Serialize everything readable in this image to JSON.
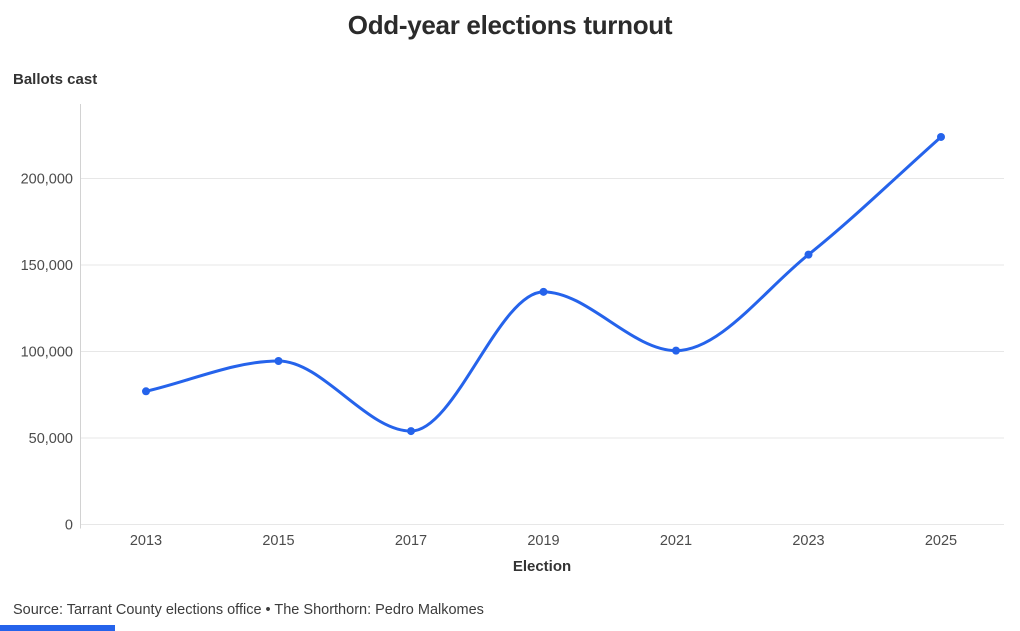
{
  "header": {
    "title": "Odd-year elections turnout"
  },
  "axes": {
    "y_title": "Ballots cast",
    "x_title": "Election"
  },
  "footer": {
    "source": "Source: Tarrant County elections office • The Shorthorn: Pedro Malkomes"
  },
  "colors": {
    "line": "#2563eb",
    "marker": "#2563eb",
    "title_text": "#2b2b2b",
    "axis_label_text": "#333333",
    "tick_text": "#4b4b4b",
    "grid": "#e7e7e7",
    "axis_line": "#d2d2d2",
    "source_text": "#3c3c3c",
    "brand_bar": "#2563eb",
    "background": "#ffffff"
  },
  "chart_data": {
    "type": "line",
    "title": "Odd-year elections turnout",
    "xlabel": "Election",
    "ylabel": "Ballots cast",
    "categories": [
      "2013",
      "2015",
      "2017",
      "2019",
      "2021",
      "2023",
      "2025"
    ],
    "series": [
      {
        "name": "Ballots cast",
        "values": [
          77000,
          94500,
          54000,
          134500,
          100500,
          156000,
          224000
        ]
      }
    ],
    "yticks": [
      0,
      50000,
      100000,
      150000,
      200000
    ],
    "ylim": [
      0,
      242500
    ],
    "grid": "horizontal-only",
    "legend": "none",
    "curve": "smooth-monotone",
    "markers": "filled-circles"
  }
}
